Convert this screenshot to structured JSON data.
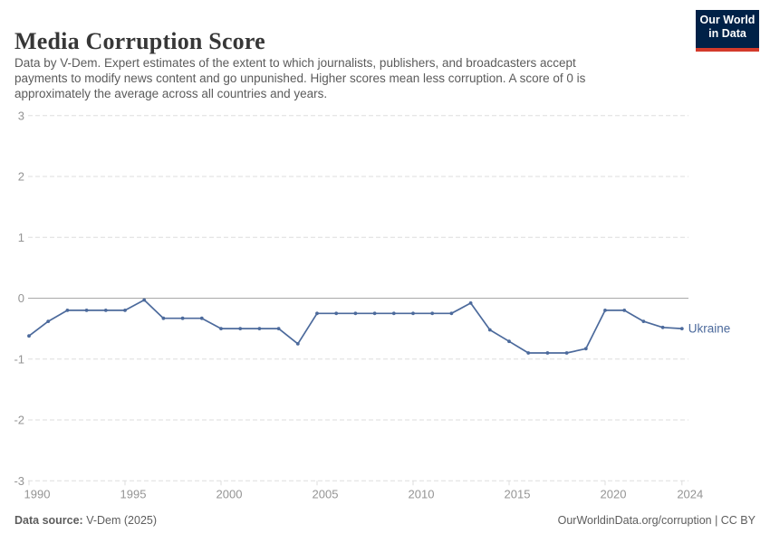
{
  "header": {
    "title": "Media Corruption Score",
    "subtitle_lines": [
      "Data by V-Dem. Expert estimates of the extent to which journalists, publishers, and broadcasters accept",
      "payments to modify news content and go unpunished. Higher scores mean less corruption. A score of 0 is",
      "approximately the average across all countries and years."
    ],
    "logo": {
      "line1": "Our World",
      "line2": "in Data"
    }
  },
  "chart_data": {
    "type": "line",
    "title": "Media Corruption Score",
    "xlabel": "",
    "ylabel": "",
    "xlim": [
      1990,
      2024
    ],
    "ylim": [
      -3,
      3
    ],
    "x_ticks": [
      1990,
      1995,
      2000,
      2005,
      2010,
      2015,
      2020,
      2024
    ],
    "y_ticks": [
      3,
      2,
      1,
      0,
      -1,
      -2,
      -3
    ],
    "grid": "horizontal-dashed",
    "zero_line": true,
    "legend_position": "line-end-label",
    "series": [
      {
        "name": "Ukraine",
        "color": "#4C6A9C",
        "x": [
          1990,
          1991,
          1992,
          1993,
          1994,
          1995,
          1996,
          1997,
          1998,
          1999,
          2000,
          2001,
          2002,
          2003,
          2004,
          2005,
          2006,
          2007,
          2008,
          2009,
          2010,
          2011,
          2012,
          2013,
          2014,
          2015,
          2016,
          2017,
          2018,
          2019,
          2020,
          2021,
          2022,
          2023,
          2024
        ],
        "values": [
          -0.62,
          -0.38,
          -0.2,
          -0.2,
          -0.2,
          -0.2,
          -0.03,
          -0.33,
          -0.33,
          -0.33,
          -0.5,
          -0.5,
          -0.5,
          -0.5,
          -0.75,
          -0.25,
          -0.25,
          -0.25,
          -0.25,
          -0.25,
          -0.25,
          -0.25,
          -0.25,
          -0.08,
          -0.52,
          -0.71,
          -0.9,
          -0.9,
          -0.9,
          -0.83,
          -0.2,
          -0.2,
          -0.38,
          -0.48,
          -0.5
        ]
      }
    ]
  },
  "colors": {
    "series_blue": "#4C6A9C",
    "logo_bg": "#002147",
    "logo_accent": "#D33A2B",
    "grid_line": "#DDDDDD",
    "zero_line": "#A9A9A9",
    "axis_text": "#949494",
    "title_text": "#373737",
    "body_text": "#5B5B5B"
  },
  "footer": {
    "source_label": "Data source:",
    "source_value": "V-Dem (2025)",
    "credit": "OurWorldinData.org/corruption | CC BY"
  }
}
